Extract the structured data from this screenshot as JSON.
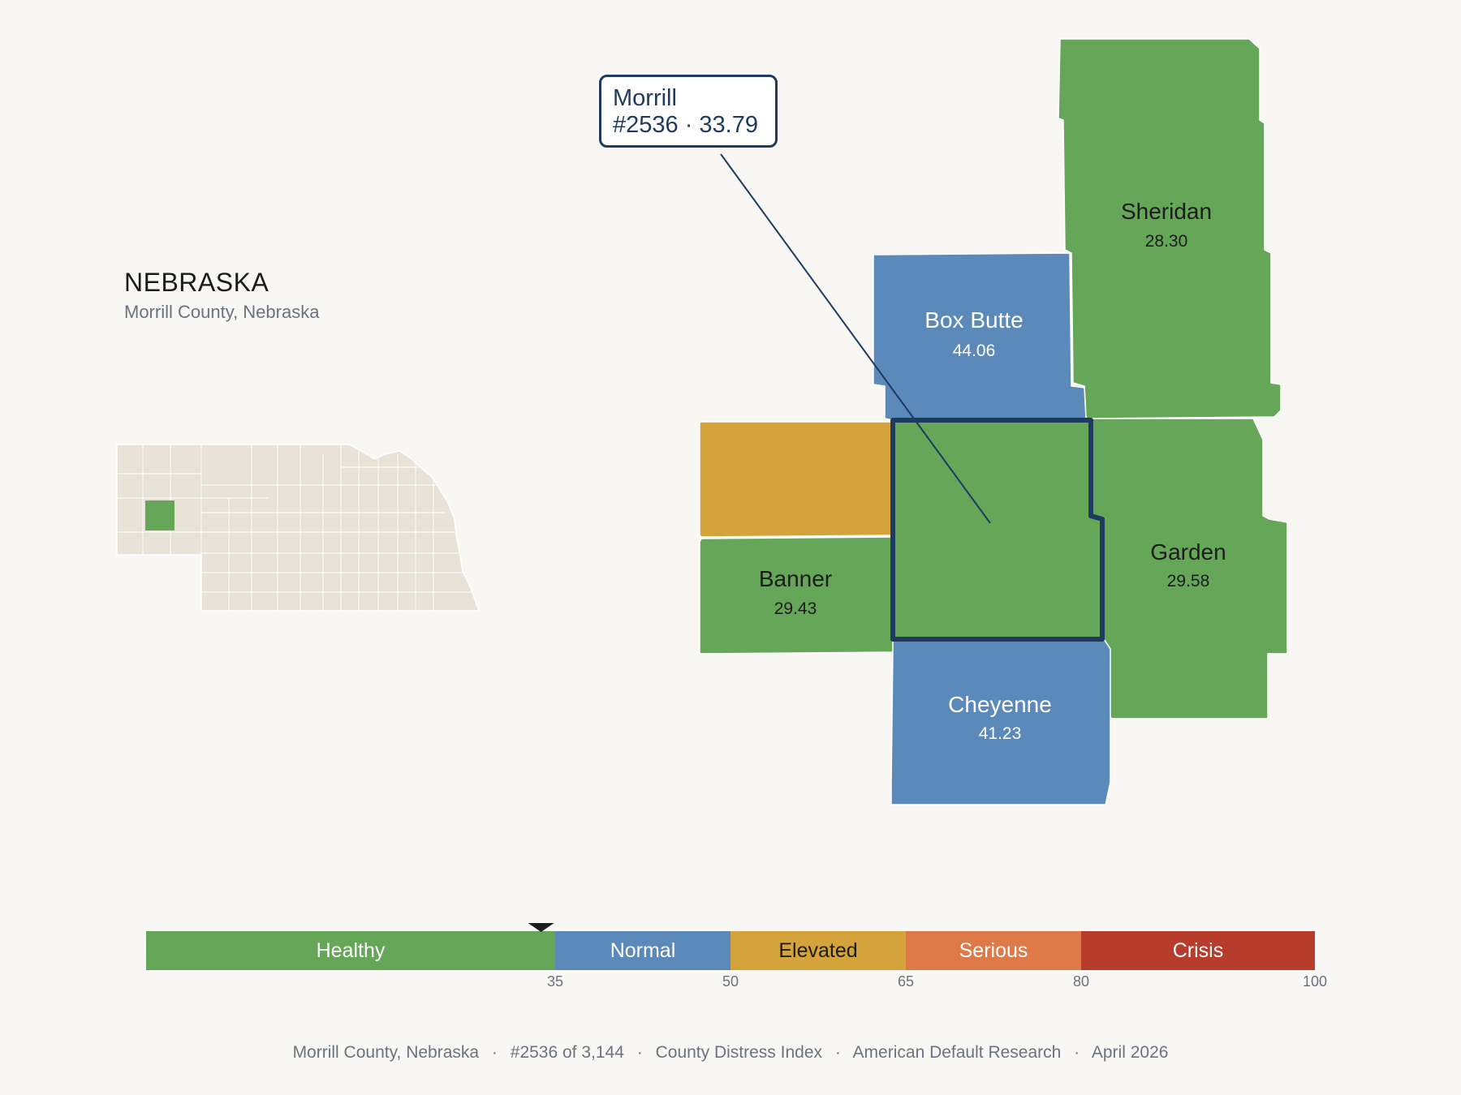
{
  "state": {
    "title": "NEBRASKA",
    "subtitle": "Morrill County, Nebraska"
  },
  "callout": {
    "name": "Morrill",
    "rank_score": "#2536 · 33.79"
  },
  "counties": [
    {
      "name": "Sheridan",
      "value": "28.30",
      "category": "Healthy"
    },
    {
      "name": "Box Butte",
      "value": "44.06",
      "category": "Normal"
    },
    {
      "name": "Garden",
      "value": "29.58",
      "category": "Healthy"
    },
    {
      "name": "Banner",
      "value": "29.43",
      "category": "Healthy"
    },
    {
      "name": "Cheyenne",
      "value": "41.23",
      "category": "Normal"
    },
    {
      "name": "Morrill",
      "value": "33.79",
      "category": "Healthy",
      "highlighted": true
    },
    {
      "name": "",
      "value": "",
      "category": "Elevated"
    }
  ],
  "scale": {
    "segments": [
      {
        "label": "Healthy",
        "min": 0,
        "max": 35,
        "color": "#66a659",
        "text_color": "#ffffff"
      },
      {
        "label": "Normal",
        "min": 35,
        "max": 50,
        "color": "#5b8aba",
        "text_color": "#ffffff"
      },
      {
        "label": "Elevated",
        "min": 50,
        "max": 65,
        "color": "#d4a33b",
        "text_color": "#1c1c1c"
      },
      {
        "label": "Serious",
        "min": 65,
        "max": 80,
        "color": "#dd7a47",
        "text_color": "#ffffff"
      },
      {
        "label": "Crisis",
        "min": 80,
        "max": 100,
        "color": "#b83c2b",
        "text_color": "#ffffff"
      }
    ],
    "ticks": [
      "35",
      "50",
      "65",
      "80",
      "100"
    ],
    "marker_value": 33.79
  },
  "footer": {
    "items": [
      "Morrill County, Nebraska",
      "#2536 of 3,144",
      "County Distress Index",
      "American Default Research",
      "April 2026"
    ],
    "separator": "·"
  },
  "colors": {
    "background": "#f9f7f3",
    "healthy": "#66a659",
    "normal": "#5b8aba",
    "elevated": "#d4a33b",
    "highlight_outline": "#1f3a5f",
    "inset_state": "#e8e2d7"
  }
}
